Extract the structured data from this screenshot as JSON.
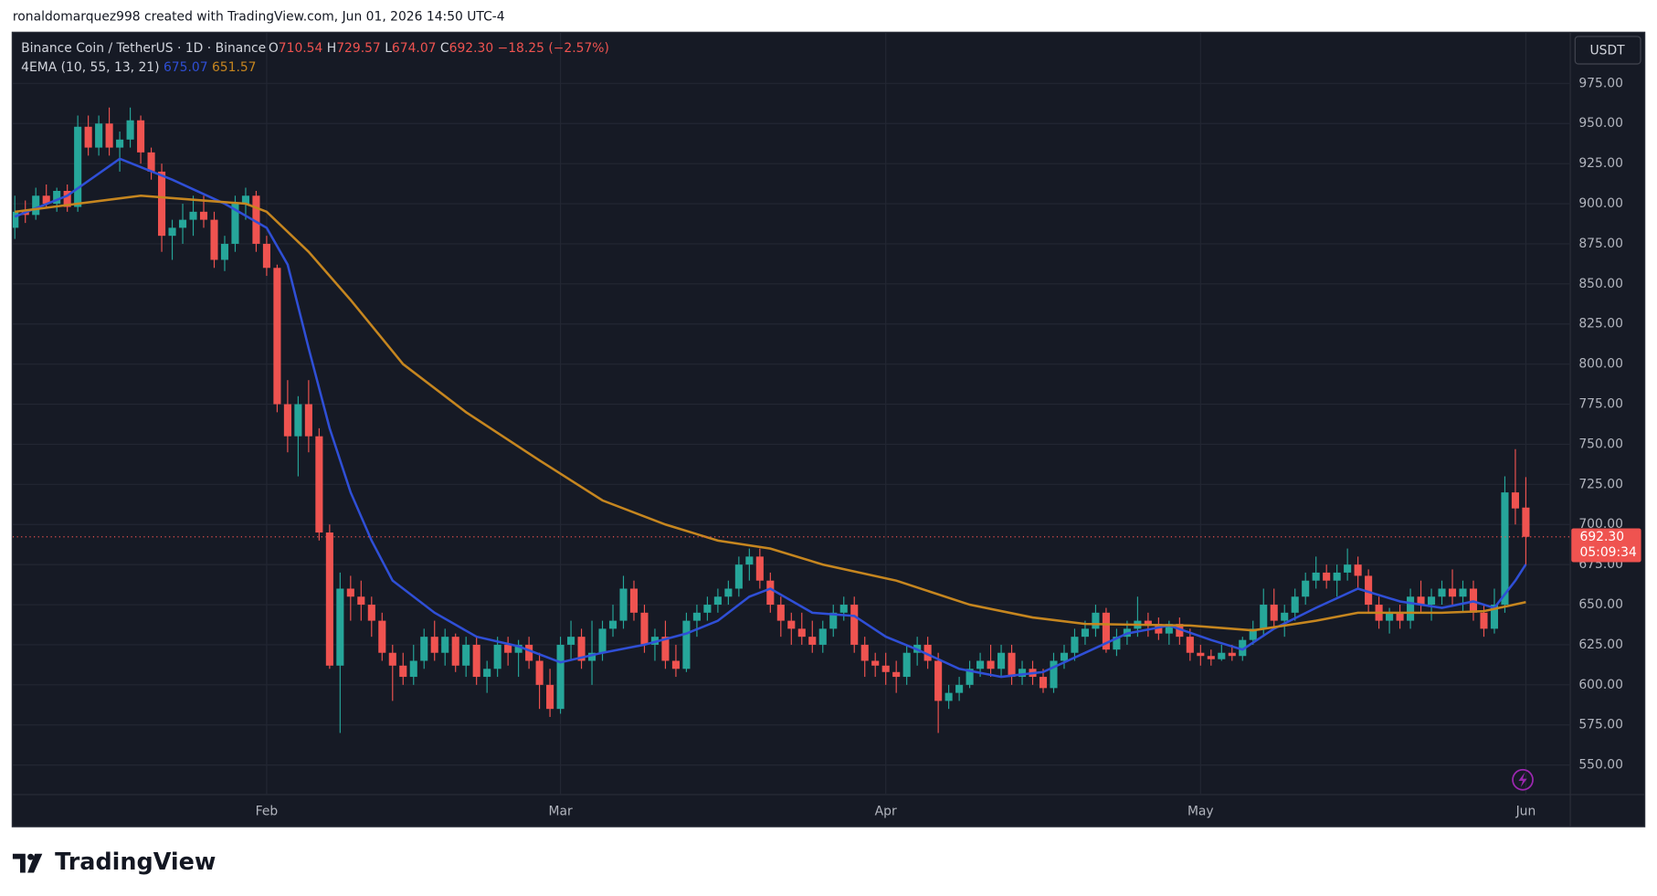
{
  "header": {
    "attribution": "ronaldomarquez998 created with TradingView.com, Jun 01, 2026 14:50 UTC-4",
    "symbol": "Binance Coin / TetherUS · 1D · Binance",
    "open_label": "O",
    "open": "710.54",
    "high_label": "H",
    "high": "729.57",
    "low_label": "L",
    "low": "674.07",
    "close_label": "C",
    "close": "692.30",
    "change": "−18.25 (−2.57%)",
    "indicator": "4EMA (10, 55, 13, 21)",
    "currency": "USDT",
    "countdown": "05:09:34"
  },
  "footer": {
    "brand": "TradingView"
  },
  "chart_data": {
    "type": "candlestick",
    "categories": [
      null,
      null,
      null,
      null,
      null,
      null,
      null,
      null,
      null,
      null,
      null,
      null,
      null,
      null,
      null,
      null,
      null,
      null,
      null,
      null,
      null,
      null,
      null,
      null,
      "Feb",
      null,
      null,
      null,
      null,
      null,
      null,
      null,
      null,
      null,
      null,
      null,
      null,
      null,
      null,
      null,
      null,
      null,
      null,
      null,
      null,
      null,
      null,
      null,
      null,
      null,
      null,
      null,
      "Mar",
      null,
      null,
      null,
      null,
      null,
      null,
      null,
      null,
      null,
      null,
      null,
      null,
      null,
      null,
      null,
      null,
      null,
      null,
      null,
      null,
      null,
      null,
      null,
      null,
      null,
      null,
      null,
      null,
      null,
      null,
      "Apr",
      null,
      null,
      null,
      null,
      null,
      null,
      null,
      null,
      null,
      null,
      null,
      null,
      null,
      null,
      null,
      null,
      null,
      null,
      null,
      null,
      null,
      null,
      null,
      null,
      null,
      null,
      null,
      null,
      null,
      "May",
      null,
      null,
      null,
      null,
      null,
      null,
      null,
      null,
      null,
      null,
      null,
      null,
      null,
      null,
      null,
      null,
      null,
      null,
      null,
      null,
      null,
      null,
      null,
      null,
      null,
      null,
      null,
      null,
      null,
      null,
      "Jun"
    ],
    "open": [
      885,
      895,
      893,
      905,
      900,
      908,
      898,
      948,
      935,
      950,
      935,
      940,
      952,
      932,
      920,
      880,
      885,
      890,
      895,
      890,
      865,
      875,
      900,
      905,
      875,
      860,
      775,
      755,
      775,
      755,
      695,
      612,
      660,
      655,
      650,
      640,
      620,
      612,
      605,
      615,
      630,
      620,
      630,
      612,
      625,
      605,
      610,
      625,
      620,
      625,
      615,
      600,
      585,
      625,
      630,
      615,
      620,
      635,
      640,
      660,
      645,
      625,
      630,
      615,
      610,
      640,
      645,
      650,
      655,
      660,
      675,
      680,
      665,
      650,
      640,
      635,
      630,
      625,
      635,
      645,
      650,
      625,
      615,
      612,
      608,
      605,
      620,
      625,
      615,
      590,
      595,
      600,
      610,
      615,
      610,
      620,
      605,
      610,
      605,
      598,
      615,
      620,
      630,
      635,
      645,
      622,
      630,
      635,
      640,
      638,
      632,
      638,
      630,
      620,
      618,
      616,
      620,
      618,
      628,
      635,
      650,
      640,
      645,
      655,
      665,
      670,
      665,
      670,
      675,
      668,
      650,
      640,
      645,
      640,
      655,
      650,
      655,
      660,
      655,
      660,
      645,
      635,
      650,
      720,
      710.54
    ],
    "high": [
      905,
      902,
      910,
      912,
      910,
      912,
      955,
      955,
      955,
      960,
      945,
      960,
      955,
      935,
      925,
      890,
      900,
      905,
      905,
      895,
      880,
      905,
      910,
      908,
      880,
      862,
      790,
      780,
      790,
      760,
      700,
      670,
      668,
      665,
      655,
      645,
      625,
      620,
      625,
      635,
      640,
      635,
      632,
      630,
      630,
      615,
      630,
      630,
      628,
      630,
      620,
      610,
      630,
      640,
      635,
      640,
      640,
      650,
      668,
      665,
      650,
      635,
      640,
      625,
      645,
      650,
      655,
      660,
      665,
      680,
      685,
      685,
      670,
      655,
      645,
      645,
      640,
      640,
      650,
      655,
      655,
      630,
      620,
      620,
      615,
      625,
      630,
      630,
      620,
      600,
      605,
      615,
      620,
      625,
      625,
      625,
      615,
      615,
      610,
      620,
      625,
      635,
      640,
      650,
      648,
      635,
      640,
      655,
      645,
      642,
      640,
      642,
      635,
      625,
      622,
      625,
      625,
      630,
      640,
      660,
      660,
      650,
      660,
      670,
      680,
      675,
      675,
      685,
      680,
      672,
      655,
      648,
      650,
      660,
      665,
      660,
      665,
      672,
      665,
      665,
      650,
      660,
      730,
      747,
      729.57
    ],
    "low": [
      878,
      888,
      890,
      898,
      895,
      895,
      895,
      930,
      930,
      930,
      920,
      935,
      925,
      915,
      870,
      865,
      875,
      880,
      885,
      860,
      858,
      870,
      890,
      870,
      855,
      770,
      745,
      730,
      745,
      690,
      610,
      570,
      640,
      640,
      630,
      615,
      590,
      600,
      600,
      610,
      615,
      612,
      608,
      605,
      600,
      595,
      605,
      612,
      605,
      610,
      585,
      580,
      582,
      615,
      610,
      600,
      615,
      630,
      635,
      640,
      620,
      615,
      610,
      605,
      608,
      630,
      640,
      645,
      650,
      655,
      665,
      660,
      645,
      630,
      625,
      625,
      620,
      620,
      630,
      640,
      620,
      605,
      605,
      600,
      595,
      600,
      612,
      610,
      570,
      585,
      590,
      598,
      605,
      605,
      605,
      600,
      600,
      600,
      595,
      595,
      610,
      615,
      625,
      630,
      620,
      618,
      625,
      630,
      630,
      628,
      625,
      625,
      615,
      612,
      612,
      615,
      615,
      615,
      625,
      630,
      635,
      630,
      640,
      650,
      660,
      660,
      655,
      665,
      660,
      645,
      635,
      632,
      635,
      635,
      645,
      640,
      650,
      650,
      645,
      640,
      630,
      632,
      645,
      700,
      674.07
    ],
    "close": [
      895,
      893,
      905,
      900,
      908,
      898,
      948,
      935,
      950,
      935,
      940,
      952,
      932,
      920,
      880,
      885,
      890,
      895,
      890,
      865,
      875,
      900,
      905,
      875,
      860,
      775,
      755,
      775,
      755,
      695,
      612,
      660,
      655,
      650,
      640,
      620,
      612,
      605,
      615,
      630,
      620,
      630,
      612,
      625,
      605,
      610,
      625,
      620,
      625,
      615,
      600,
      585,
      625,
      630,
      615,
      620,
      635,
      640,
      660,
      645,
      625,
      630,
      615,
      610,
      640,
      645,
      650,
      655,
      660,
      675,
      680,
      665,
      650,
      640,
      635,
      630,
      625,
      635,
      645,
      650,
      625,
      615,
      612,
      608,
      605,
      620,
      625,
      615,
      590,
      595,
      600,
      610,
      615,
      610,
      620,
      605,
      610,
      605,
      598,
      615,
      620,
      630,
      635,
      645,
      622,
      630,
      635,
      640,
      638,
      632,
      638,
      630,
      620,
      618,
      616,
      620,
      618,
      628,
      635,
      650,
      640,
      645,
      655,
      665,
      670,
      665,
      670,
      675,
      668,
      650,
      640,
      645,
      640,
      655,
      650,
      655,
      660,
      655,
      660,
      645,
      635,
      650,
      720,
      710,
      692.3
    ],
    "up_color": "#26a69a",
    "down_color": "#ef5350",
    "series": [
      {
        "color": "#2f4fd6",
        "x": [
          0,
          5,
          10,
          15,
          20,
          24,
          26,
          28,
          30,
          32,
          34,
          36,
          40,
          44,
          48,
          52,
          56,
          60,
          64,
          67,
          70,
          72,
          76,
          80,
          83,
          86,
          90,
          94,
          98,
          102,
          106,
          110,
          114,
          117,
          120,
          124,
          128,
          132,
          136,
          139,
          141,
          143,
          144
        ],
        "values": [
          892,
          905,
          928,
          915,
          900,
          885,
          862,
          810,
          760,
          720,
          690,
          665,
          645,
          630,
          624,
          614,
          620,
          625,
          632,
          640,
          655,
          660,
          645,
          643,
          630,
          622,
          610,
          605,
          608,
          620,
          632,
          637,
          628,
          622,
          635,
          648,
          660,
          652,
          648,
          652,
          648,
          665,
          675.07
        ]
      },
      {
        "color": "#c6861f",
        "x": [
          0,
          6,
          12,
          18,
          22,
          24,
          28,
          32,
          37,
          43,
          50,
          56,
          62,
          67,
          72,
          77,
          84,
          91,
          97,
          102,
          112,
          118,
          124,
          128,
          136,
          140,
          144
        ],
        "values": [
          895,
          900,
          905,
          902,
          900,
          895,
          870,
          840,
          800,
          770,
          740,
          715,
          700,
          690,
          685,
          675,
          665,
          650,
          642,
          638,
          637,
          634,
          640,
          645,
          645,
          646,
          651.57
        ]
      }
    ],
    "ylim": [
      531.6,
      1006.6
    ],
    "yticks": [
      {
        "value": 550,
        "label": "550.00"
      },
      {
        "value": 575,
        "label": "575.00"
      },
      {
        "value": 600,
        "label": "600.00"
      },
      {
        "value": 625,
        "label": "625.00"
      },
      {
        "value": 650,
        "label": "650.00"
      },
      {
        "value": 675,
        "label": "675.00"
      },
      {
        "value": 700,
        "label": "700.00"
      },
      {
        "value": 725,
        "label": "725.00"
      },
      {
        "value": 750,
        "label": "750.00"
      },
      {
        "value": 775,
        "label": "775.00"
      },
      {
        "value": 800,
        "label": "800.00"
      },
      {
        "value": 825,
        "label": "825.00"
      },
      {
        "value": 850,
        "label": "850.00"
      },
      {
        "value": 875,
        "label": "875.00"
      },
      {
        "value": 900,
        "label": "900.00"
      },
      {
        "value": 925,
        "label": "925.00"
      },
      {
        "value": 950,
        "label": "950.00"
      },
      {
        "value": 975,
        "label": "975.00"
      }
    ],
    "grid": true
  }
}
